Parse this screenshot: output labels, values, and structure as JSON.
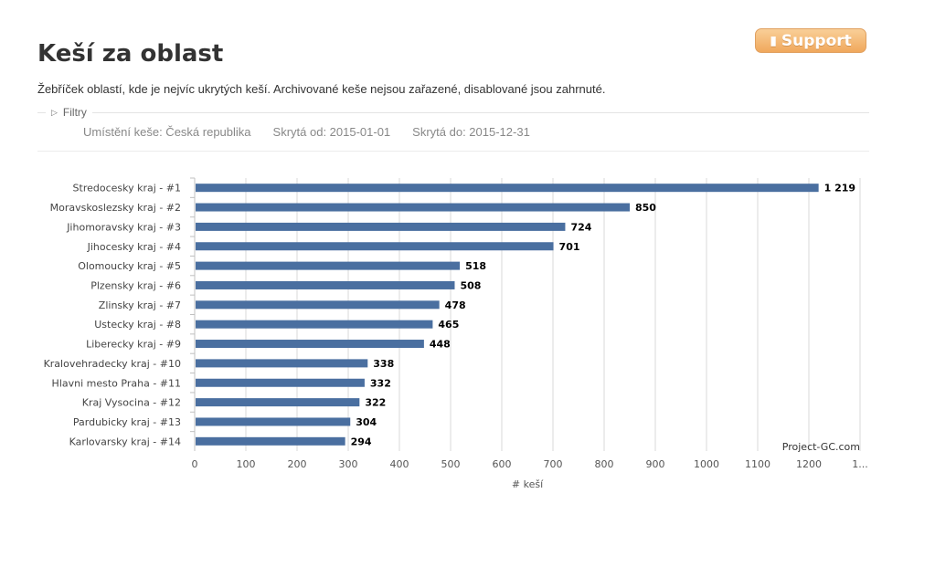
{
  "header": {
    "title": "Keší za oblast",
    "subtitle": "Žebříček oblastí, kde je nejvíc ukrytých keší. Archivované keše nejsou zařazené, disablované jsou zahrnuté.",
    "support_label": "Support"
  },
  "filters": {
    "label": "Filtry",
    "location": "Umístění keše: Česká republika",
    "hidden_from": "Skrytá od: 2015-01-01",
    "hidden_to": "Skrytá do: 2015-12-31"
  },
  "colors": {
    "bar": "#4a6fa0",
    "support_button": "#f0a85c"
  },
  "chart_data": {
    "type": "bar",
    "orientation": "horizontal",
    "categories": [
      "Stredocesky kraj - #1",
      "Moravskoslezsky kraj - #2",
      "Jihomoravsky kraj - #3",
      "Jihocesky kraj - #4",
      "Olomoucky kraj - #5",
      "Plzensky kraj - #6",
      "Zlinsky kraj - #7",
      "Ustecky kraj - #8",
      "Liberecky kraj - #9",
      "Kralovehradecky kraj - #10",
      "Hlavni mesto Praha - #11",
      "Kraj Vysocina - #12",
      "Pardubicky kraj - #13",
      "Karlovarsky kraj - #14"
    ],
    "values": [
      1219,
      850,
      724,
      701,
      518,
      508,
      478,
      465,
      448,
      338,
      332,
      322,
      304,
      294
    ],
    "value_labels": [
      "1 219",
      "850",
      "724",
      "701",
      "518",
      "508",
      "478",
      "465",
      "448",
      "338",
      "332",
      "322",
      "304",
      "294"
    ],
    "xticks": [
      "0",
      "100",
      "200",
      "300",
      "400",
      "500",
      "600",
      "700",
      "800",
      "900",
      "1000",
      "1100",
      "1200",
      "1..."
    ],
    "xlabel": "# keší",
    "xlim": [
      0,
      1300
    ],
    "grid": true,
    "credit": "Project-GC.com"
  }
}
